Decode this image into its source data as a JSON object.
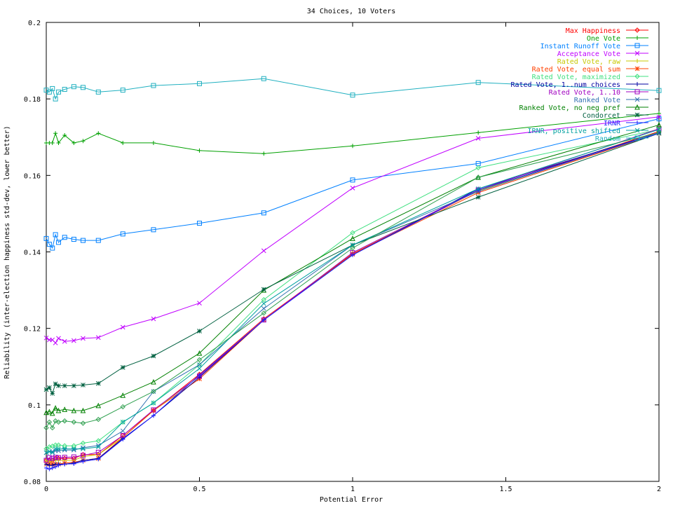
{
  "chart_data": {
    "type": "line",
    "title": "34 Choices, 10 Voters",
    "xlabel": "Potential Error",
    "ylabel": "Reliability (inter-election happiness std-dev, lower better)",
    "xlim": [
      0,
      2
    ],
    "ylim": [
      0.08,
      0.2
    ],
    "xticks": [
      "0",
      "0.5",
      "1",
      "1.5",
      "2"
    ],
    "yticks": [
      "0.08",
      "0.1",
      "0.12",
      "0.14",
      "0.16",
      "0.18",
      "0.2"
    ],
    "grid": false,
    "legend_placement": "top-right",
    "x": [
      0,
      0.01,
      0.02,
      0.03,
      0.04,
      0.06,
      0.09,
      0.12,
      0.17,
      0.25,
      0.35,
      0.5,
      0.71,
      1.0,
      1.41,
      2.0
    ],
    "series": [
      {
        "name": "Max Happiness",
        "color": "#ff0000",
        "marker": "diamond",
        "values": [
          0.0855,
          0.0855,
          0.0855,
          0.086,
          0.086,
          0.086,
          0.086,
          0.087,
          0.087,
          0.092,
          0.0985,
          0.108,
          0.1225,
          0.1395,
          0.156,
          0.1715
        ]
      },
      {
        "name": "One Vote",
        "color": "#00a000",
        "marker": "plus",
        "values": [
          0.1685,
          0.1685,
          0.1685,
          0.171,
          0.1685,
          0.1705,
          0.1685,
          0.169,
          0.171,
          0.1685,
          0.1685,
          0.1665,
          0.1657,
          0.1677,
          0.1712,
          0.1762
        ]
      },
      {
        "name": "Instant Runoff Vote",
        "color": "#0080ff",
        "marker": "square",
        "values": [
          0.1435,
          0.142,
          0.141,
          0.1445,
          0.1425,
          0.1438,
          0.1433,
          0.143,
          0.143,
          0.1447,
          0.1458,
          0.1475,
          0.1502,
          0.1588,
          0.1631,
          0.1748
        ]
      },
      {
        "name": "Acceptance Vote",
        "color": "#c000ff",
        "marker": "x",
        "values": [
          0.1175,
          0.117,
          0.117,
          0.1162,
          0.1174,
          0.1166,
          0.1168,
          0.1174,
          0.1176,
          0.1203,
          0.1225,
          0.1266,
          0.1403,
          0.1567,
          0.1697,
          0.1753
        ]
      },
      {
        "name": "Rated Vote, raw",
        "color": "#c8c800",
        "marker": "plus",
        "values": [
          0.0855,
          0.085,
          0.0855,
          0.0855,
          0.0855,
          0.0855,
          0.0855,
          0.0865,
          0.087,
          0.0915,
          0.0985,
          0.1075,
          0.1222,
          0.1398,
          0.156,
          0.171
        ]
      },
      {
        "name": "Rated Vote, equal sum",
        "color": "#ff4000",
        "marker": "star",
        "values": [
          0.0845,
          0.0845,
          0.0845,
          0.0845,
          0.0845,
          0.0848,
          0.085,
          0.0855,
          0.086,
          0.0915,
          0.0985,
          0.1068,
          0.1222,
          0.1394,
          0.1555,
          0.171
        ]
      },
      {
        "name": "Rated Vote, maximized",
        "color": "#40e080",
        "marker": "diamond",
        "values": [
          0.0885,
          0.089,
          0.0892,
          0.0895,
          0.0895,
          0.0893,
          0.0893,
          0.09,
          0.0906,
          0.0955,
          0.1005,
          0.1105,
          0.1275,
          0.145,
          0.162,
          0.172
        ]
      },
      {
        "name": "Rated Vote, 1..num choices",
        "color": "#0000a0",
        "marker": "plus",
        "values": [
          0.0845,
          0.0842,
          0.0842,
          0.0845,
          0.0845,
          0.0845,
          0.0848,
          0.0855,
          0.086,
          0.0912,
          0.0972,
          0.1072,
          0.1222,
          0.1392,
          0.1565,
          0.1712
        ]
      },
      {
        "name": "Rated Vote, 1..10",
        "color": "#a000c0",
        "marker": "square",
        "values": [
          0.0855,
          0.0862,
          0.086,
          0.0863,
          0.0862,
          0.0863,
          0.0864,
          0.0868,
          0.0876,
          0.092,
          0.0987,
          0.1075,
          0.1222,
          0.1398,
          0.1562,
          0.1722
        ]
      },
      {
        "name": "Ranked Vote",
        "color": "#3070b0",
        "marker": "x",
        "values": [
          0.0875,
          0.0878,
          0.0878,
          0.088,
          0.088,
          0.0882,
          0.0882,
          0.0888,
          0.0894,
          0.0932,
          0.1035,
          0.1105,
          0.1252,
          0.1418,
          0.1558,
          0.1712
        ]
      },
      {
        "name": "Ranked Vote, no neg pref",
        "color": "#008000",
        "marker": "triangle",
        "values": [
          0.098,
          0.0982,
          0.0978,
          0.0992,
          0.0985,
          0.0988,
          0.0985,
          0.0985,
          0.0998,
          0.1025,
          0.106,
          0.1135,
          0.13,
          0.1435,
          0.1595,
          0.1732
        ]
      },
      {
        "name": "Condorcet",
        "color": "#006040",
        "marker": "star",
        "values": [
          0.104,
          0.1045,
          0.103,
          0.1055,
          0.105,
          0.105,
          0.105,
          0.1052,
          0.1056,
          0.1098,
          0.1128,
          0.1193,
          0.1302,
          0.1418,
          0.1543,
          0.171
        ]
      },
      {
        "name": "IRNR",
        "color": "#2020ff",
        "marker": "plus",
        "values": [
          0.0835,
          0.0832,
          0.0835,
          0.0838,
          0.0842,
          0.0845,
          0.0846,
          0.0852,
          0.0858,
          0.091,
          0.0972,
          0.1078,
          0.1222,
          0.1392,
          0.1562,
          0.171
        ]
      },
      {
        "name": "IRNR, positive shifted",
        "color": "#00a0a0",
        "marker": "x",
        "values": [
          0.0875,
          0.0878,
          0.0875,
          0.0885,
          0.0885,
          0.0885,
          0.0885,
          0.0885,
          0.089,
          0.0955,
          0.1005,
          0.1095,
          0.1265,
          0.1418,
          0.1565,
          0.172
        ]
      },
      {
        "name": "Random",
        "color": "#20b0c0",
        "marker": "square",
        "values": [
          0.1823,
          0.1818,
          0.1827,
          0.18,
          0.1818,
          0.1825,
          0.1832,
          0.183,
          0.1818,
          0.1823,
          0.1835,
          0.184,
          0.1853,
          0.181,
          0.1843,
          0.1822
        ]
      },
      {
        "name": "",
        "color": "#30a050",
        "marker": "diamond",
        "values": [
          0.094,
          0.0955,
          0.094,
          0.0958,
          0.0955,
          0.0958,
          0.0955,
          0.0952,
          0.0962,
          0.0995,
          0.1035,
          0.1118,
          0.124,
          0.141,
          0.1595,
          0.1712
        ]
      }
    ]
  }
}
